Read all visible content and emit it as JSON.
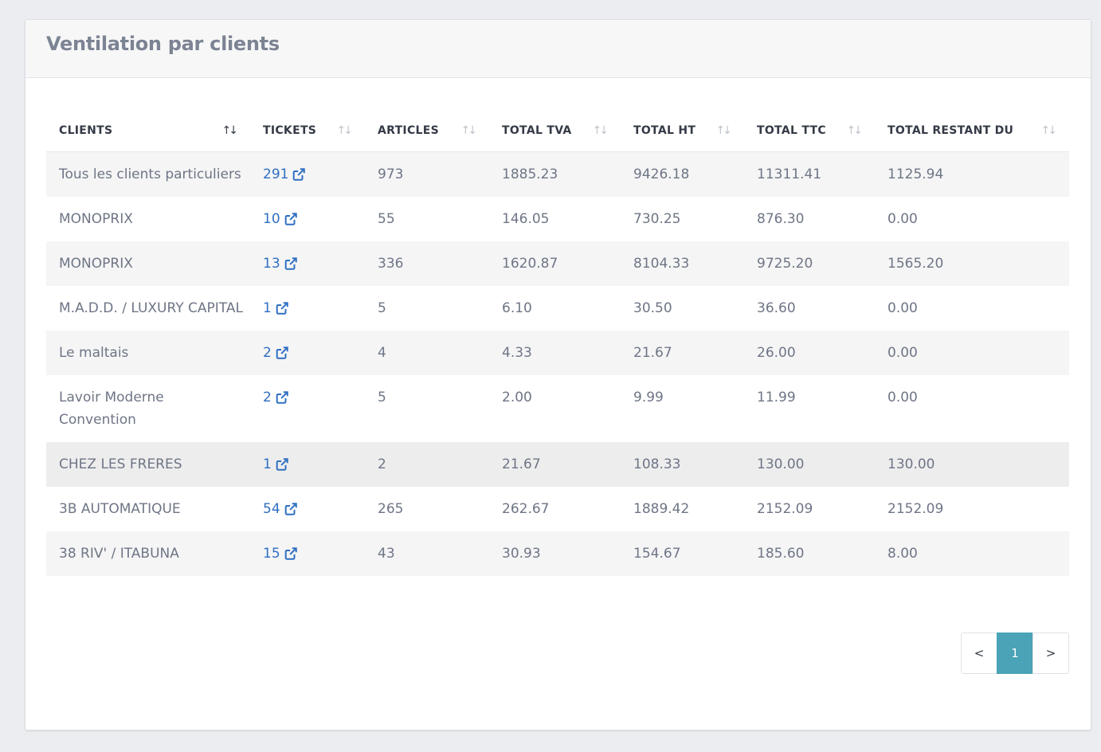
{
  "panel": {
    "title": "Ventilation par clients"
  },
  "table": {
    "columns": [
      {
        "label": "CLIENTS",
        "sorted": true
      },
      {
        "label": "TICKETS",
        "sorted": false
      },
      {
        "label": "ARTICLES",
        "sorted": false
      },
      {
        "label": "TOTAL TVA",
        "sorted": false
      },
      {
        "label": "TOTAL HT",
        "sorted": false
      },
      {
        "label": "TOTAL TTC",
        "sorted": false
      },
      {
        "label": "TOTAL RESTANT DU",
        "sorted": false
      }
    ],
    "rows": [
      {
        "client": "Tous les clients particuliers",
        "tickets": "291",
        "articles": "973",
        "tva": "1885.23",
        "ht": "9426.18",
        "ttc": "11311.41",
        "restant": "1125.94"
      },
      {
        "client": "MONOPRIX",
        "tickets": "10",
        "articles": "55",
        "tva": "146.05",
        "ht": "730.25",
        "ttc": "876.30",
        "restant": "0.00"
      },
      {
        "client": "MONOPRIX",
        "tickets": "13",
        "articles": "336",
        "tva": "1620.87",
        "ht": "8104.33",
        "ttc": "9725.20",
        "restant": "1565.20"
      },
      {
        "client": "M.A.D.D. / LUXURY CAPITAL",
        "tickets": "1",
        "articles": "5",
        "tva": "6.10",
        "ht": "30.50",
        "ttc": "36.60",
        "restant": "0.00"
      },
      {
        "client": "Le maltais",
        "tickets": "2",
        "articles": "4",
        "tva": "4.33",
        "ht": "21.67",
        "ttc": "26.00",
        "restant": "0.00"
      },
      {
        "client": "Lavoir Moderne Convention",
        "tickets": "2",
        "articles": "5",
        "tva": "2.00",
        "ht": "9.99",
        "ttc": "11.99",
        "restant": "0.00"
      },
      {
        "client": "CHEZ LES FRERES",
        "tickets": "1",
        "articles": "2",
        "tva": "21.67",
        "ht": "108.33",
        "ttc": "130.00",
        "restant": "130.00"
      },
      {
        "client": "3B AUTOMATIQUE",
        "tickets": "54",
        "articles": "265",
        "tva": "262.67",
        "ht": "1889.42",
        "ttc": "2152.09",
        "restant": "2152.09"
      },
      {
        "client": "38 RIV' / ITABUNA",
        "tickets": "15",
        "articles": "43",
        "tva": "30.93",
        "ht": "154.67",
        "ttc": "185.60",
        "restant": "8.00"
      }
    ]
  },
  "pagination": {
    "prev": "<",
    "current": "1",
    "next": ">"
  },
  "colors": {
    "link": "#2f6fc2",
    "active_page": "#4aa3b7"
  },
  "icons": {
    "sort": "sort-arrows-icon",
    "external": "external-link-icon"
  }
}
